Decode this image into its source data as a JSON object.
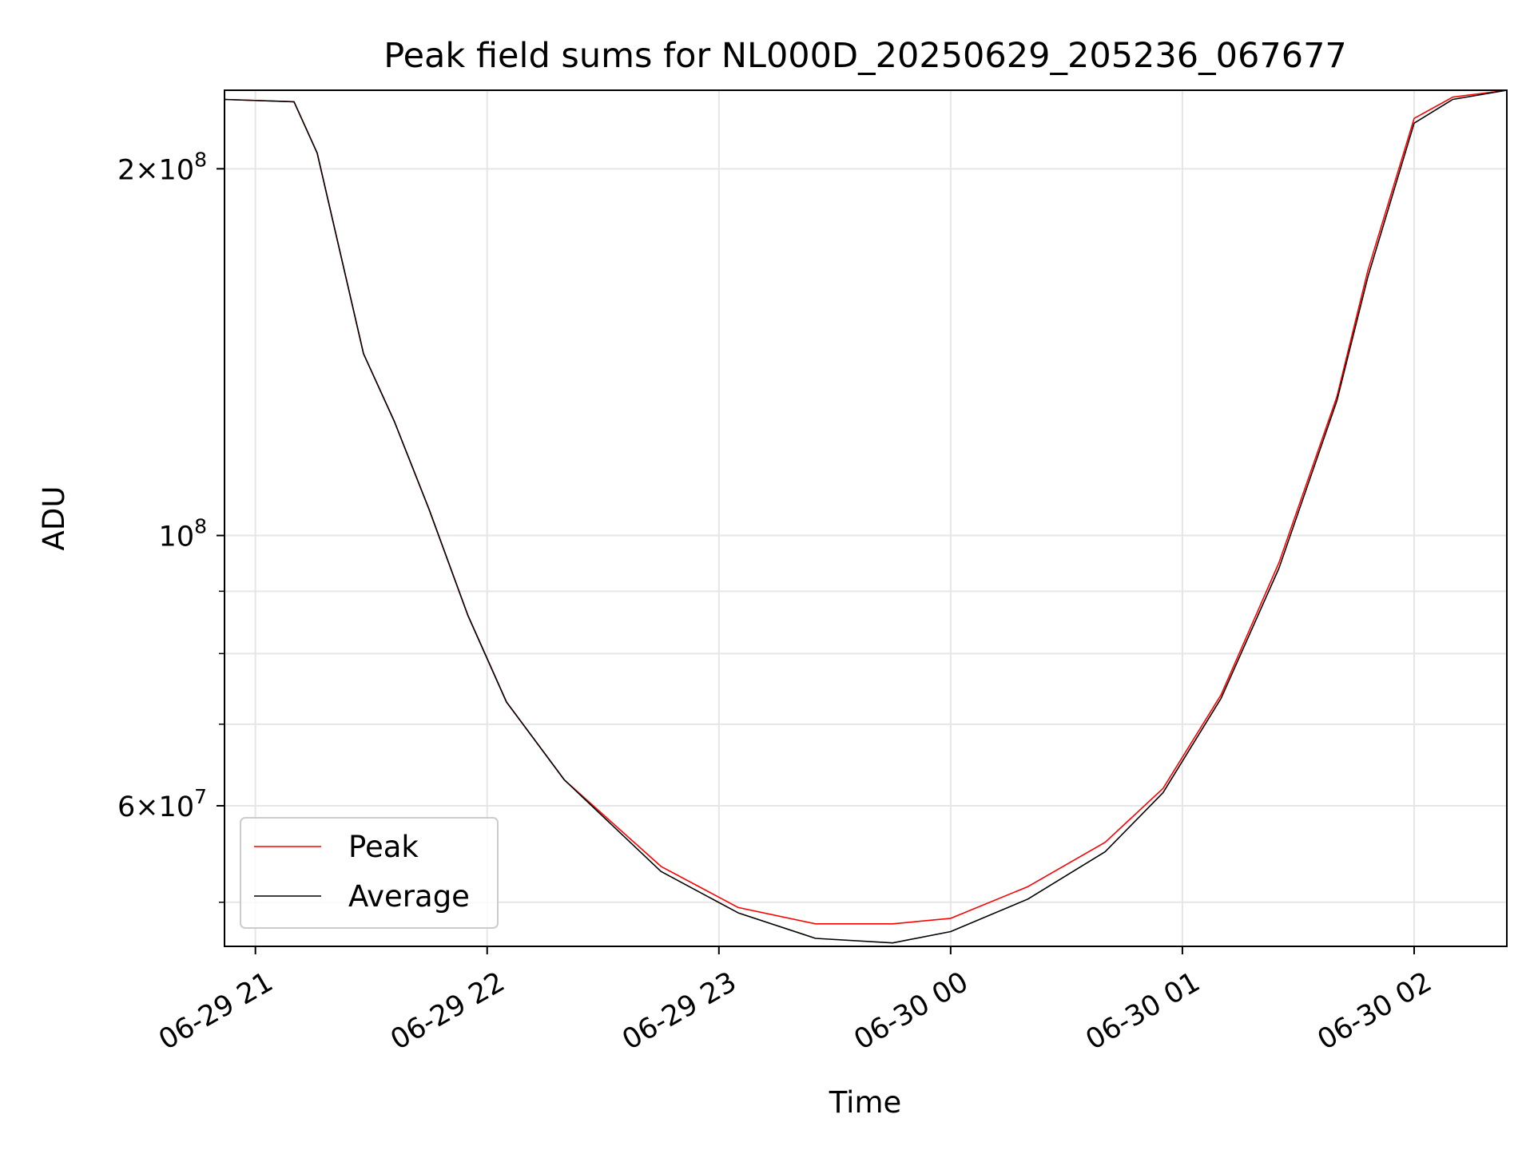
{
  "chart_data": {
    "type": "line",
    "title": "Peak field sums for NL000D_20250629_205236_067677",
    "xlabel": "Time",
    "ylabel": "ADU",
    "x_range": [
      "2025-06-29 20:52",
      "2025-06-30 02:24"
    ],
    "y_scale": "log",
    "ylim": [
      46000000,
      232000000
    ],
    "x_ticks": [
      {
        "t": "2025-06-29 21:00",
        "label": "06-29 21"
      },
      {
        "t": "2025-06-29 22:00",
        "label": "06-29 22"
      },
      {
        "t": "2025-06-29 23:00",
        "label": "06-29 23"
      },
      {
        "t": "2025-06-30 00:00",
        "label": "06-30 00"
      },
      {
        "t": "2025-06-30 01:00",
        "label": "06-30 01"
      },
      {
        "t": "2025-06-30 02:00",
        "label": "06-30 02"
      }
    ],
    "y_ticks": [
      {
        "value": 200000000,
        "label_mantissa": "2",
        "label_times": "×10",
        "label_exp": "8"
      },
      {
        "value": 100000000,
        "label_mantissa": "",
        "label_times": "10",
        "label_exp": "8"
      },
      {
        "value": 60000000,
        "label_mantissa": "6",
        "label_times": "×10",
        "label_exp": "7"
      }
    ],
    "y_minor_ticks": [
      50000000,
      70000000,
      80000000,
      90000000
    ],
    "grid": true,
    "legend_position": "lower-left",
    "series": [
      {
        "name": "Peak",
        "color": "#ff0000",
        "points": [
          [
            "2025-06-29 20:52",
            228000000
          ],
          [
            "2025-06-29 21:10",
            227000000
          ],
          [
            "2025-06-29 21:16",
            206000000
          ],
          [
            "2025-06-29 21:24",
            160000000
          ],
          [
            "2025-06-29 21:28",
            141000000
          ],
          [
            "2025-06-29 21:36",
            124000000
          ],
          [
            "2025-06-29 21:45",
            105000000
          ],
          [
            "2025-06-29 21:55",
            86000000
          ],
          [
            "2025-06-29 22:05",
            73000000
          ],
          [
            "2025-06-29 22:20",
            63000000
          ],
          [
            "2025-06-29 22:45",
            53500000
          ],
          [
            "2025-06-29 23:05",
            49500000
          ],
          [
            "2025-06-29 23:25",
            48000000
          ],
          [
            "2025-06-29 23:45",
            48000000
          ],
          [
            "2025-06-30 00:00",
            48500000
          ],
          [
            "2025-06-30 00:20",
            51500000
          ],
          [
            "2025-06-30 00:40",
            56000000
          ],
          [
            "2025-06-30 00:55",
            62000000
          ],
          [
            "2025-06-30 01:10",
            74000000
          ],
          [
            "2025-06-30 01:25",
            95000000
          ],
          [
            "2025-06-30 01:40",
            130000000
          ],
          [
            "2025-06-30 01:48",
            165000000
          ],
          [
            "2025-06-30 02:00",
            220000000
          ],
          [
            "2025-06-30 02:10",
            229000000
          ],
          [
            "2025-06-30 02:24",
            232000000
          ]
        ]
      },
      {
        "name": "Average",
        "color": "#000000",
        "points": [
          [
            "2025-06-29 20:52",
            228000000
          ],
          [
            "2025-06-29 21:10",
            227000000
          ],
          [
            "2025-06-29 21:16",
            206000000
          ],
          [
            "2025-06-29 21:24",
            160000000
          ],
          [
            "2025-06-29 21:28",
            141000000
          ],
          [
            "2025-06-29 21:36",
            124000000
          ],
          [
            "2025-06-29 21:45",
            105000000
          ],
          [
            "2025-06-29 21:55",
            86000000
          ],
          [
            "2025-06-29 22:05",
            73000000
          ],
          [
            "2025-06-29 22:20",
            63000000
          ],
          [
            "2025-06-29 22:45",
            53000000
          ],
          [
            "2025-06-29 23:05",
            49000000
          ],
          [
            "2025-06-29 23:25",
            46700000
          ],
          [
            "2025-06-29 23:45",
            46300000
          ],
          [
            "2025-06-30 00:00",
            47300000
          ],
          [
            "2025-06-30 00:20",
            50300000
          ],
          [
            "2025-06-30 00:40",
            55000000
          ],
          [
            "2025-06-30 00:55",
            61500000
          ],
          [
            "2025-06-30 01:10",
            73500000
          ],
          [
            "2025-06-30 01:25",
            94000000
          ],
          [
            "2025-06-30 01:40",
            129000000
          ],
          [
            "2025-06-30 01:48",
            163000000
          ],
          [
            "2025-06-30 02:00",
            218000000
          ],
          [
            "2025-06-30 02:10",
            228000000
          ],
          [
            "2025-06-30 02:24",
            232000000
          ]
        ]
      }
    ]
  }
}
